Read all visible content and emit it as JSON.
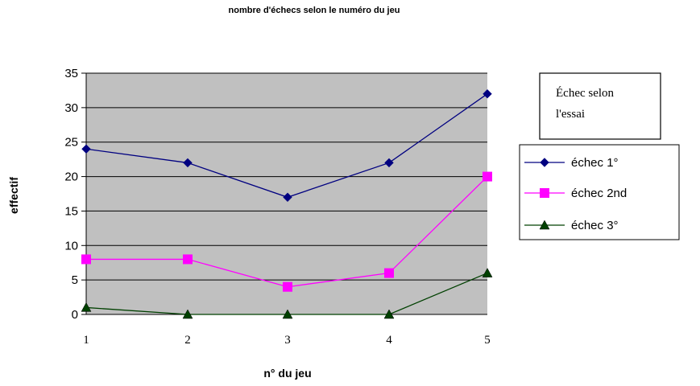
{
  "chart_data": {
    "type": "line",
    "title": "nombre d'échecs selon le numéro du jeu",
    "xlabel": "n° du jeu",
    "ylabel": "effectif",
    "x": [
      1,
      2,
      3,
      4,
      5
    ],
    "ylim": [
      0,
      35
    ],
    "yticks": [
      0,
      5,
      10,
      15,
      20,
      25,
      30,
      35
    ],
    "grid": true,
    "legend_position": "right",
    "plot_background": "#c0c0c0",
    "text_box": [
      "Échec selon",
      "l'essai"
    ],
    "series": [
      {
        "name": "échec 1°",
        "values": [
          24,
          22,
          17,
          22,
          32
        ],
        "color": "#000080",
        "marker": "diamond"
      },
      {
        "name": "échec 2nd",
        "values": [
          8,
          8,
          4,
          6,
          20
        ],
        "color": "#ff00ff",
        "marker": "square"
      },
      {
        "name": "échec 3°",
        "values": [
          1,
          0,
          0,
          0,
          6
        ],
        "color": "#004000",
        "marker": "triangle"
      }
    ]
  }
}
